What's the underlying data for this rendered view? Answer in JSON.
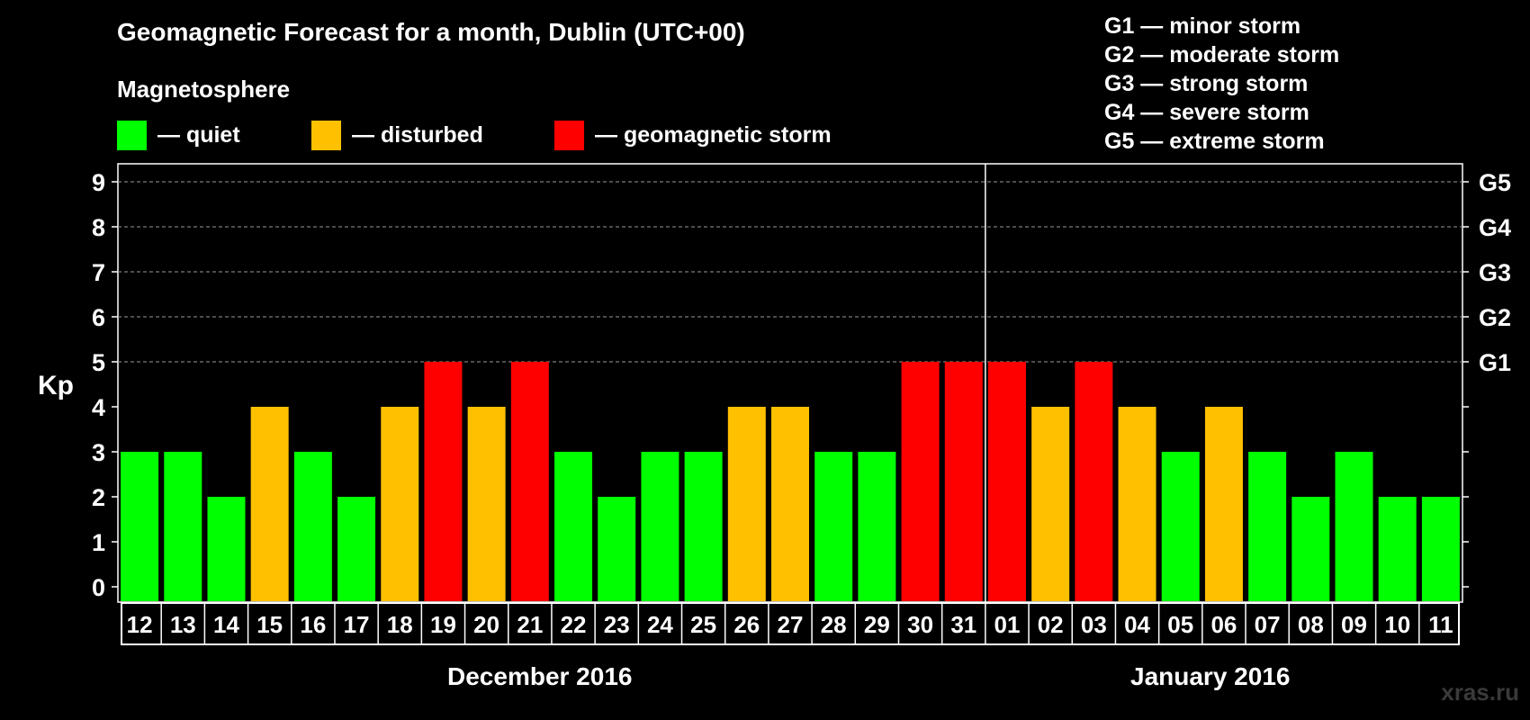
{
  "title": "Geomagnetic Forecast for a month, Dublin (UTC+00)",
  "subtitle": "Magnetosphere",
  "legend": [
    {
      "label": "— quiet",
      "color": "#00ff00"
    },
    {
      "label": "— disturbed",
      "color": "#ffc000"
    },
    {
      "label": "— geomagnetic storm",
      "color": "#ff0000"
    }
  ],
  "g_scale": [
    "G1 — minor storm",
    "G2 — moderate storm",
    "G3 — strong storm",
    "G4 — severe storm",
    "G5 — extreme storm"
  ],
  "months": [
    "December 2016",
    "January 2016"
  ],
  "watermark": "xras.ru",
  "chart_data": {
    "type": "bar",
    "ylabel": "Kp",
    "ylim": [
      0,
      9
    ],
    "yticks": [
      0,
      1,
      2,
      3,
      4,
      5,
      6,
      7,
      8,
      9
    ],
    "right_axis_labels": [
      {
        "kp": 5,
        "label": "G1"
      },
      {
        "kp": 6,
        "label": "G2"
      },
      {
        "kp": 7,
        "label": "G3"
      },
      {
        "kp": 8,
        "label": "G4"
      },
      {
        "kp": 9,
        "label": "G5"
      }
    ],
    "grid": "dashed, Kp 5–9",
    "categories": [
      "12",
      "13",
      "14",
      "15",
      "16",
      "17",
      "18",
      "19",
      "20",
      "21",
      "22",
      "23",
      "24",
      "25",
      "26",
      "27",
      "28",
      "29",
      "30",
      "31",
      "01",
      "02",
      "03",
      "04",
      "05",
      "06",
      "07",
      "08",
      "09",
      "10",
      "11"
    ],
    "values": [
      3,
      3,
      2,
      4,
      3,
      2,
      4,
      5,
      4,
      5,
      3,
      2,
      3,
      3,
      4,
      4,
      3,
      3,
      5,
      5,
      5,
      4,
      5,
      4,
      3,
      4,
      3,
      2,
      3,
      2,
      2
    ],
    "month_split_after": "31",
    "colors": {
      "quiet": "#00ff00",
      "disturbed": "#ffc000",
      "storm": "#ff0000"
    }
  }
}
